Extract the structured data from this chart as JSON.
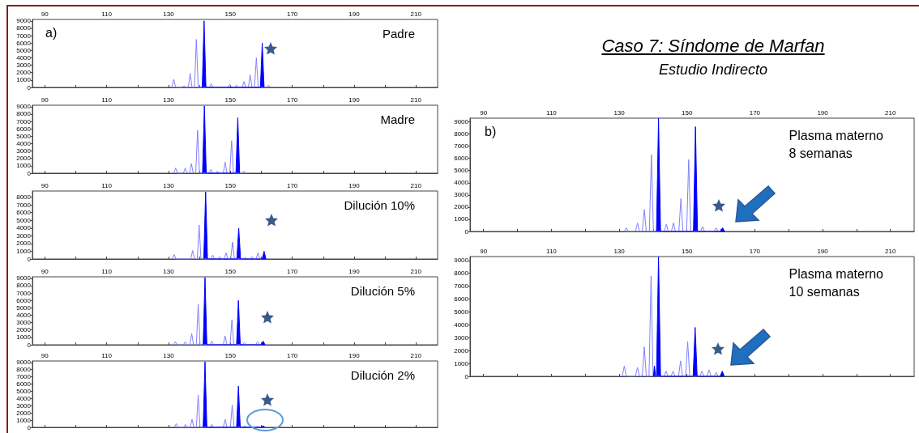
{
  "chart_data": [
    {
      "type": "line",
      "title": "Padre",
      "annotations": [
        "a)"
      ],
      "xlim": [
        86,
        217
      ],
      "ylim": [
        0,
        9200
      ],
      "xticks": [
        90,
        {
          "value": 100,
          "label": null
        },
        110,
        {
          "value": 120,
          "label": null
        },
        130,
        {
          "value": 140,
          "label": null
        },
        150,
        {
          "value": 160,
          "label": null
        },
        170,
        {
          "value": 180,
          "label": null
        },
        190,
        {
          "value": 200,
          "label": null
        },
        210
      ],
      "yticks": [
        0,
        1000,
        2000,
        3000,
        4000,
        5000,
        6000,
        7000,
        8000,
        9000
      ],
      "grid": false,
      "series": [
        {
          "type": "line",
          "color": "#8080ff",
          "x": [
            131.1,
            131.7,
            132.3,
            134.4,
            135,
            135.6,
            136.4,
            137,
            137.6,
            138.4,
            139,
            139.6,
            143.2,
            143.8,
            144.4,
            149.2,
            149.8,
            150.4,
            151.4,
            152,
            152.6,
            153.8,
            154.4,
            155,
            155.8,
            156.4,
            157,
            157.8,
            158.4,
            159,
            161.7,
            162.3,
            162.9
          ],
          "values": [
            0,
            1100,
            0,
            0,
            200,
            0,
            0,
            1900,
            0,
            0,
            6500,
            0,
            0,
            500,
            0,
            0,
            400,
            0,
            0,
            300,
            0,
            0,
            800,
            0,
            0,
            1700,
            0,
            0,
            4000,
            0,
            0,
            300,
            0
          ]
        },
        {
          "type": "area",
          "color": "#0000ff",
          "x": [
            140.9,
            141.5,
            142.1,
            159.7,
            160.3,
            160.9
          ],
          "values": [
            0,
            9000,
            0,
            0,
            6000,
            0
          ]
        }
      ]
    },
    {
      "type": "line",
      "title": "Madre",
      "xlim": [
        86,
        217
      ],
      "ylim": [
        0,
        9200
      ],
      "xticks": [
        90,
        {
          "value": 100,
          "label": null
        },
        110,
        {
          "value": 120,
          "label": null
        },
        130,
        {
          "value": 140,
          "label": null
        },
        150,
        {
          "value": 160,
          "label": null
        },
        170,
        {
          "value": 180,
          "label": null
        },
        190,
        {
          "value": 200,
          "label": null
        },
        210
      ],
      "yticks": [
        0,
        1000,
        2000,
        3000,
        4000,
        5000,
        6000,
        7000,
        8000,
        9000
      ],
      "grid": false,
      "series": [
        {
          "type": "line",
          "color": "#8080ff",
          "x": [
            131.7,
            132.3,
            132.9,
            134.8,
            135.4,
            136,
            136.8,
            137.4,
            138,
            138.8,
            139.4,
            140,
            143.1,
            143.7,
            144.3,
            145.2,
            145.8,
            146.4,
            147.7,
            148.3,
            148.9,
            149.8,
            150.4,
            151,
            153.8,
            154.4,
            155
          ],
          "values": [
            0,
            700,
            0,
            0,
            700,
            0,
            0,
            1300,
            0,
            0,
            5800,
            0,
            0,
            500,
            0,
            0,
            300,
            0,
            0,
            1500,
            0,
            0,
            4400,
            0,
            0,
            300,
            0
          ]
        },
        {
          "type": "area",
          "color": "#0000ff",
          "x": [
            141,
            141.6,
            142.2,
            151.8,
            152.4,
            153
          ],
          "values": [
            0,
            9100,
            0,
            0,
            7500,
            0
          ]
        }
      ]
    },
    {
      "type": "line",
      "title": "Dilución 10%",
      "xlim": [
        86,
        217
      ],
      "ylim": [
        0,
        8800
      ],
      "xticks": [
        90,
        {
          "value": 100,
          "label": null
        },
        110,
        {
          "value": 120,
          "label": null
        },
        130,
        {
          "value": 140,
          "label": null
        },
        150,
        {
          "value": 160,
          "label": null
        },
        170,
        {
          "value": 180,
          "label": null
        },
        190,
        {
          "value": 200,
          "label": null
        },
        210
      ],
      "yticks": [
        0,
        1000,
        2000,
        3000,
        4000,
        5000,
        6000,
        7000,
        8000
      ],
      "grid": false,
      "series": [
        {
          "type": "line",
          "color": "#8080ff",
          "x": [
            131.2,
            131.8,
            132.4,
            137.2,
            137.8,
            138.4,
            139.3,
            139.9,
            140.5,
            143.7,
            144.3,
            144.9,
            145.9,
            146.5,
            147.1,
            148,
            148.6,
            149.2,
            150.1,
            150.7,
            151.3,
            154.2,
            154.8,
            155.4,
            156.4,
            157,
            157.6,
            158.3,
            158.9,
            159.5
          ],
          "values": [
            0,
            600,
            0,
            0,
            1100,
            0,
            0,
            4400,
            0,
            0,
            500,
            0,
            0,
            300,
            0,
            0,
            800,
            0,
            0,
            2200,
            0,
            0,
            200,
            0,
            0,
            300,
            0,
            0,
            800,
            0
          ]
        },
        {
          "type": "area",
          "color": "#0000ff",
          "x": [
            141.4,
            142,
            142.6,
            152.1,
            152.7,
            153.3,
            160.3,
            160.9,
            161.5
          ],
          "values": [
            0,
            8700,
            0,
            0,
            4000,
            0,
            0,
            1000,
            0
          ]
        }
      ]
    },
    {
      "type": "line",
      "title": "Dilución 5%",
      "xlim": [
        86,
        217
      ],
      "ylim": [
        0,
        9200
      ],
      "xticks": [
        90,
        {
          "value": 100,
          "label": null
        },
        110,
        {
          "value": 120,
          "label": null
        },
        130,
        {
          "value": 140,
          "label": null
        },
        150,
        {
          "value": 160,
          "label": null
        },
        170,
        {
          "value": 180,
          "label": null
        },
        190,
        {
          "value": 200,
          "label": null
        },
        210
      ],
      "yticks": [
        0,
        1000,
        2000,
        3000,
        4000,
        5000,
        6000,
        7000,
        8000,
        9000
      ],
      "grid": false,
      "series": [
        {
          "type": "line",
          "color": "#8080ff",
          "x": [
            131.6,
            132.2,
            132.8,
            134.8,
            135.4,
            136,
            136.9,
            137.5,
            138.1,
            139,
            139.6,
            140.2,
            143.4,
            144,
            144.6,
            147.7,
            148.3,
            148.9,
            149.9,
            150.5,
            151.1,
            153.9,
            154.5,
            155.1,
            158.2,
            158.8,
            159.4
          ],
          "values": [
            0,
            400,
            0,
            0,
            400,
            0,
            0,
            1500,
            0,
            0,
            5500,
            0,
            0,
            500,
            0,
            0,
            1200,
            0,
            0,
            3400,
            0,
            0,
            300,
            0,
            0,
            400,
            0
          ]
        },
        {
          "type": "area",
          "color": "#0000ff",
          "x": [
            141.2,
            141.8,
            142.4,
            152,
            152.6,
            153.2,
            160,
            160.6,
            161.2
          ],
          "values": [
            0,
            9100,
            0,
            0,
            6000,
            0,
            0,
            500,
            0
          ]
        }
      ]
    },
    {
      "type": "line",
      "title": "Dilución 2%",
      "xlim": [
        86,
        217
      ],
      "ylim": [
        0,
        9200
      ],
      "xticks": [
        90,
        {
          "value": 100,
          "label": null
        },
        110,
        {
          "value": 120,
          "label": null
        },
        130,
        {
          "value": 140,
          "label": null
        },
        150,
        {
          "value": 160,
          "label": null
        },
        170,
        {
          "value": 180,
          "label": null
        },
        190,
        {
          "value": 200,
          "label": null
        },
        210
      ],
      "yticks": [
        0,
        1000,
        2000,
        3000,
        4000,
        5000,
        6000,
        7000,
        8000,
        9000
      ],
      "grid": false,
      "series": [
        {
          "type": "line",
          "color": "#8080ff",
          "x": [
            131.9,
            132.5,
            133.1,
            134.9,
            135.5,
            136.1,
            137,
            137.6,
            138.2,
            139,
            139.6,
            140.2,
            143.4,
            144,
            144.6,
            147.7,
            148.3,
            148.9,
            150,
            150.6,
            151.2,
            154,
            154.6,
            155.2,
            158.2,
            158.8,
            159.4
          ],
          "values": [
            0,
            500,
            0,
            0,
            400,
            0,
            0,
            1100,
            0,
            0,
            4500,
            0,
            0,
            400,
            0,
            0,
            1100,
            0,
            0,
            3100,
            0,
            0,
            200,
            0,
            0,
            100,
            0
          ]
        },
        {
          "type": "area",
          "color": "#0000ff",
          "x": [
            141.2,
            141.8,
            142.4,
            152,
            152.6,
            153.2,
            160,
            160.6,
            161.2
          ],
          "values": [
            0,
            9100,
            0,
            0,
            5700,
            0,
            0,
            200,
            0
          ]
        }
      ]
    },
    {
      "type": "line",
      "title": "Plasma materno\n8 semanas",
      "annotations": [
        "b)"
      ],
      "xlim": [
        86,
        217
      ],
      "ylim": [
        0,
        9300
      ],
      "xticks": [
        90,
        {
          "value": 100,
          "label": null
        },
        110,
        {
          "value": 120,
          "label": null
        },
        130,
        {
          "value": 140,
          "label": null
        },
        150,
        {
          "value": 160,
          "label": null
        },
        170,
        {
          "value": 180,
          "label": null
        },
        190,
        {
          "value": 200,
          "label": null
        },
        210
      ],
      "yticks": [
        0,
        1000,
        2000,
        3000,
        4000,
        5000,
        6000,
        7000,
        8000,
        9000
      ],
      "grid": false,
      "series": [
        {
          "type": "line",
          "color": "#8080ff",
          "x": [
            131.5,
            132.1,
            132.7,
            134.8,
            135.4,
            136,
            136.8,
            137.4,
            138,
            138.9,
            139.5,
            140.1,
            143.3,
            143.9,
            144.5,
            145.4,
            146,
            146.6,
            147.6,
            148.2,
            148.8,
            149.9,
            150.5,
            151.1,
            154,
            154.6,
            155.2,
            158,
            158.6,
            159.2
          ],
          "values": [
            0,
            300,
            0,
            0,
            700,
            0,
            0,
            1800,
            0,
            0,
            6300,
            0,
            0,
            600,
            0,
            0,
            700,
            0,
            0,
            2700,
            0,
            0,
            5900,
            0,
            0,
            400,
            0,
            0,
            300,
            0
          ]
        },
        {
          "type": "area",
          "color": "#0000ff",
          "x": [
            141,
            141.6,
            142.2,
            151.9,
            152.5,
            153.1,
            159.9,
            160.5,
            161.1
          ],
          "values": [
            0,
            9300,
            0,
            0,
            8600,
            0,
            0,
            300,
            0
          ]
        }
      ]
    },
    {
      "type": "line",
      "title": "Plasma materno\n10 semanas",
      "xlim": [
        86,
        217
      ],
      "ylim": [
        0,
        9300
      ],
      "xticks": [
        90,
        {
          "value": 100,
          "label": null
        },
        110,
        {
          "value": 120,
          "label": null
        },
        130,
        {
          "value": 140,
          "label": null
        },
        150,
        {
          "value": 160,
          "label": null
        },
        170,
        {
          "value": 180,
          "label": null
        },
        190,
        {
          "value": 200,
          "label": null
        },
        210
      ],
      "yticks": [
        0,
        1000,
        2000,
        3000,
        4000,
        5000,
        6000,
        7000,
        8000,
        9000
      ],
      "grid": false,
      "series": [
        {
          "type": "line",
          "color": "#8080ff",
          "x": [
            130.9,
            131.5,
            132.1,
            134.8,
            135.4,
            136,
            136.8,
            137.4,
            138,
            138.8,
            139.4,
            140,
            143.2,
            143.8,
            144.4,
            145.3,
            145.9,
            146.5,
            147.5,
            148.1,
            148.7,
            149.6,
            150.2,
            150.8,
            153.8,
            154.4,
            155,
            155.9,
            156.5,
            157.1,
            158,
            158.6,
            159.2
          ],
          "values": [
            0,
            800,
            0,
            0,
            700,
            0,
            0,
            2300,
            0,
            0,
            7800,
            0,
            0,
            400,
            0,
            0,
            400,
            0,
            0,
            1200,
            0,
            0,
            2700,
            0,
            0,
            400,
            0,
            0,
            500,
            0,
            0,
            300,
            0
          ]
        },
        {
          "type": "area",
          "color": "#0000ff",
          "x": [
            140.1,
            140.4,
            140.7,
            141,
            141.6,
            142.2,
            151.8,
            152.4,
            153,
            159.8,
            160.4,
            161
          ],
          "values": [
            0,
            800,
            0,
            0,
            9300,
            0,
            0,
            3800,
            0,
            0,
            400,
            0
          ]
        }
      ]
    },
    {
      "type": "other",
      "title": "Caso 7: Síndome de Marfan",
      "subtitle": "Estudio Indirecto"
    }
  ]
}
